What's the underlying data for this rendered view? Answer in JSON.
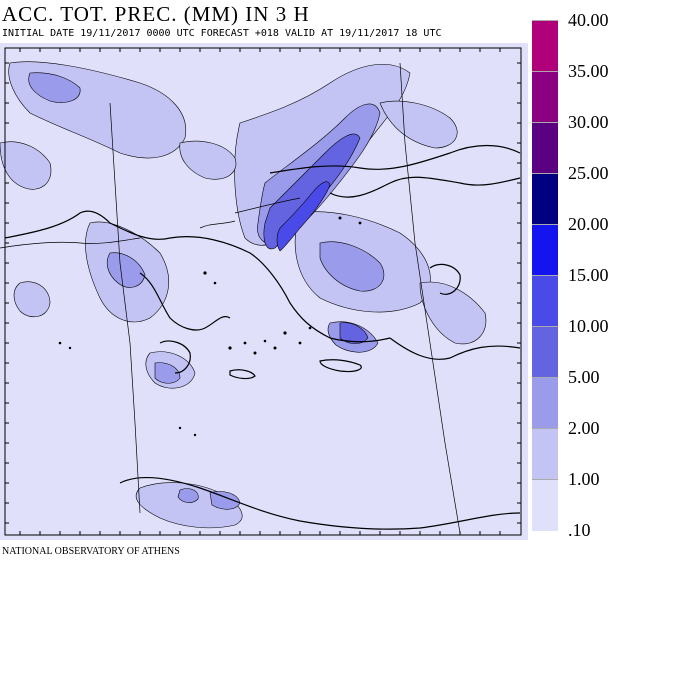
{
  "header": {
    "title": "ACC. TOT. PREC. (MM) IN 3 H",
    "subtitle": "INITIAL DATE 19/11/2017   0000 UTC FORECAST +018 VALID AT  19/11/2017  18 UTC"
  },
  "footer": {
    "credit": "NATIONAL OBSERVATORY OF ATHENS"
  },
  "legend": {
    "levels": [
      {
        "label": "40.00",
        "color": "#b0007a"
      },
      {
        "label": "35.00",
        "color": "#8b0080"
      },
      {
        "label": "30.00",
        "color": "#5a0080"
      },
      {
        "label": "25.00",
        "color": "#000080"
      },
      {
        "label": "20.00",
        "color": "#1414f0"
      },
      {
        "label": "15.00",
        "color": "#4a4ae8"
      },
      {
        "label": "10.00",
        "color": "#6464e0"
      },
      {
        "label": "5.00",
        "color": "#9b9bec"
      },
      {
        "label": "2.00",
        "color": "#c4c4f4"
      },
      {
        "label": "1.00",
        "color": "#e0e0fa"
      },
      {
        "label": ".10",
        "color": ""
      }
    ]
  },
  "map": {
    "background_color": "#e0e0fa",
    "coast_color": "#000000",
    "precip_colors": {
      "light": "#c4c4f4",
      "medium": "#9b9bec",
      "heavy": "#6464e0",
      "very_heavy": "#4a4ae8",
      "core": "#1414f0"
    }
  }
}
